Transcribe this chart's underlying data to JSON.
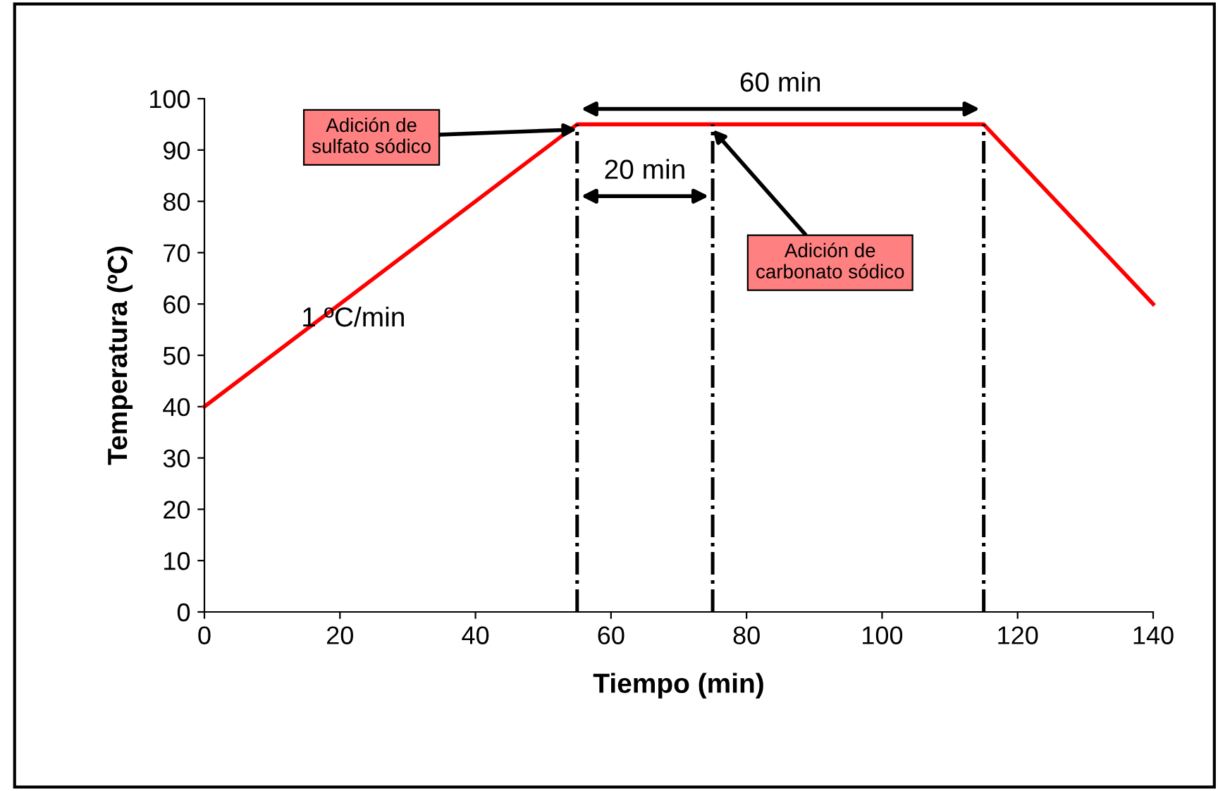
{
  "chart_data": {
    "type": "line",
    "xlabel": "Tiempo (min)",
    "ylabel": "Temperatura (ºC)",
    "xlim": [
      0,
      140
    ],
    "xticks": [
      0,
      20,
      40,
      60,
      80,
      100,
      120,
      140
    ],
    "ylim": [
      0,
      100
    ],
    "yticks": [
      0,
      10,
      20,
      30,
      40,
      50,
      60,
      70,
      80,
      90,
      100
    ],
    "grid": false,
    "legend": false,
    "marker": "none",
    "series": [
      {
        "color": "#ff0000",
        "x": [
          0,
          55,
          115,
          140
        ],
        "values": [
          40,
          95,
          95,
          60
        ],
        "line_style": "solid"
      },
      {
        "color": "#000000",
        "x": [
          55,
          55
        ],
        "values": [
          0,
          95
        ],
        "line_style": "dashdot"
      },
      {
        "color": "#000000",
        "x": [
          75,
          75
        ],
        "values": [
          0,
          95
        ],
        "line_style": "dashdot"
      },
      {
        "color": "#000000",
        "x": [
          115,
          115
        ],
        "values": [
          0,
          95
        ],
        "line_style": "dashdot"
      }
    ],
    "annotations": [
      "60 min",
      "20 min",
      {
        "text": "Adición de\nsulfato sódico",
        "x": 55,
        "y": 94
      },
      {
        "text": "Adición de\ncarbonato sódico",
        "x": 75,
        "y": 94
      },
      "1 ºC/min"
    ]
  }
}
